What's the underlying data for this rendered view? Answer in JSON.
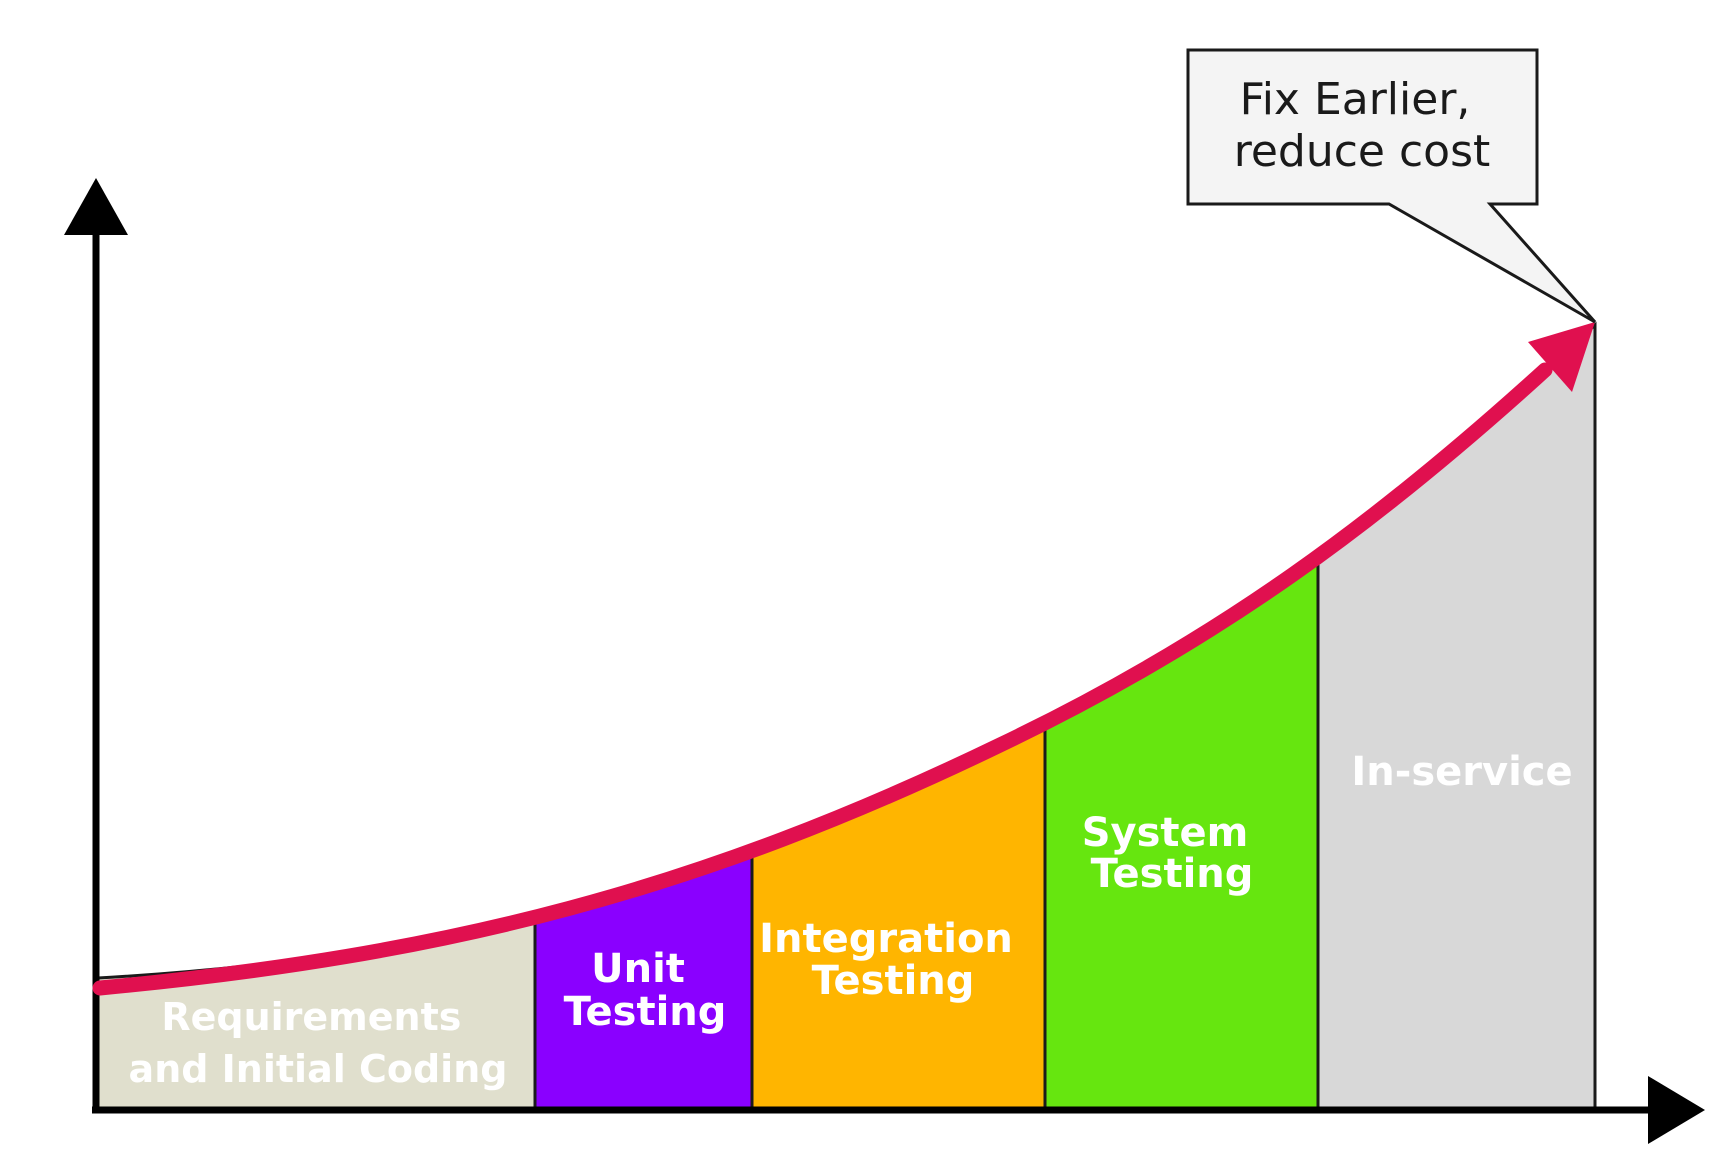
{
  "callout": {
    "line1": "Fix Earlier,",
    "line2": "reduce cost"
  },
  "phases": [
    {
      "lines": [
        "Requirements",
        "and Initial Coding"
      ],
      "color": "#e0dfcd"
    },
    {
      "lines": [
        "Unit",
        "Testing"
      ],
      "color": "#8a00ff"
    },
    {
      "lines": [
        "Integration",
        "Testing"
      ],
      "color": "#ffb500"
    },
    {
      "lines": [
        "System",
        "Testing"
      ],
      "color": "#66e60f"
    },
    {
      "lines": [
        "In-service"
      ],
      "color": "#d8d8d8"
    }
  ],
  "colors": {
    "curve": "#e0104f",
    "axis": "#000000",
    "phase_border": "#1a1a1a",
    "callout_fill": "#f4f4f4",
    "callout_border": "#1a1a1a"
  }
}
